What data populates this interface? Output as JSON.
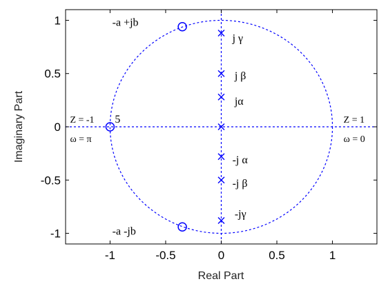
{
  "chart_data": {
    "type": "scatter",
    "xlabel": "Real Part",
    "ylabel": "Imaginary Part",
    "xlim": [
      -1.4,
      1.4
    ],
    "ylim": [
      -1.1,
      1.1
    ],
    "x_ticks": [
      -1,
      -0.5,
      0,
      0.5,
      1
    ],
    "x_tick_labels": [
      "-1",
      "-0.5",
      "0",
      "0.5",
      "1"
    ],
    "y_ticks": [
      1,
      0.5,
      0,
      -0.5,
      -1
    ],
    "y_tick_labels": [
      "1",
      "0.5",
      "0",
      "-0.5",
      "-1"
    ],
    "unit_circle": {
      "center": [
        0,
        0
      ],
      "radius": 1,
      "color": "#0000ff",
      "style": "dashed"
    },
    "reference_lines": [
      {
        "orientation": "horizontal",
        "value": 0,
        "color": "#0000ff",
        "style": "dashed"
      },
      {
        "orientation": "vertical",
        "value": 0,
        "color": "#0000ff",
        "style": "dashed"
      }
    ],
    "zeros": [
      {
        "x": -0.35,
        "y": 0.94
      },
      {
        "x": -0.35,
        "y": -0.94
      },
      {
        "x": -1.0,
        "y": 0.0,
        "multiplicity_label": "5"
      }
    ],
    "poles": [
      {
        "x": 0,
        "y": 0.88
      },
      {
        "x": 0,
        "y": 0.5
      },
      {
        "x": 0,
        "y": 0.28
      },
      {
        "x": 0,
        "y": 0.0
      },
      {
        "x": 0,
        "y": -0.28
      },
      {
        "x": 0,
        "y": -0.5
      },
      {
        "x": 0,
        "y": -0.88
      }
    ],
    "marker_color": "#0000ff",
    "annotations": [
      {
        "text": "-a +jb",
        "x": -0.98,
        "y": 0.98
      },
      {
        "text": "-a -jb",
        "x": -0.98,
        "y": -0.98
      },
      {
        "text": "j γ",
        "x": 0.1,
        "y": 0.83
      },
      {
        "text": "j β",
        "x": 0.12,
        "y": 0.48
      },
      {
        "text": "jα",
        "x": 0.12,
        "y": 0.24
      },
      {
        "text": "-j α",
        "x": 0.1,
        "y": -0.31
      },
      {
        "text": "-j β",
        "x": 0.1,
        "y": -0.53
      },
      {
        "text": "-jγ",
        "x": 0.12,
        "y": -0.82
      },
      {
        "text": "Z = -1",
        "x": -1.36,
        "y": 0.07
      },
      {
        "text": "ω = π",
        "x": -1.36,
        "y": -0.11
      },
      {
        "text": "Z = 1",
        "x": 1.1,
        "y": 0.07
      },
      {
        "text": "ω = 0",
        "x": 1.1,
        "y": -0.11
      }
    ],
    "grid": false,
    "legend": "none"
  }
}
